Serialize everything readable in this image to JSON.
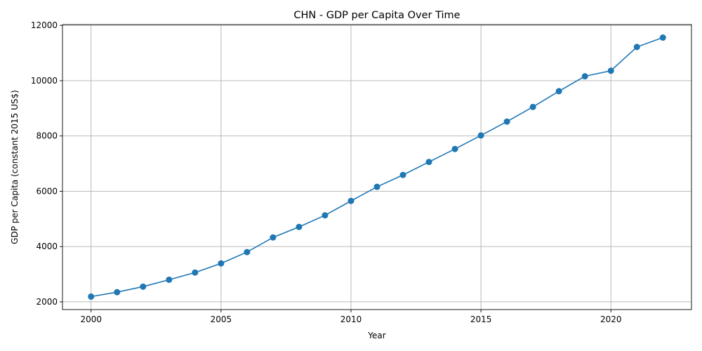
{
  "chart_data": {
    "type": "line",
    "title": "CHN - GDP per Capita Over Time",
    "xlabel": "Year",
    "ylabel": "GDP per Capita (constant 2015 US$)",
    "x": [
      2000,
      2001,
      2002,
      2003,
      2004,
      2005,
      2006,
      2007,
      2008,
      2009,
      2010,
      2011,
      2012,
      2013,
      2014,
      2015,
      2016,
      2017,
      2018,
      2019,
      2020,
      2021,
      2022
    ],
    "series": [
      {
        "values": [
          2190,
          2350,
          2550,
          2800,
          3060,
          3390,
          3800,
          4330,
          4710,
          5130,
          5650,
          6160,
          6590,
          7060,
          7530,
          8020,
          8520,
          9050,
          9620,
          10160,
          10360,
          11220,
          11560
        ],
        "color": "#1f77b4",
        "marker": "circle"
      }
    ],
    "xlim": [
      1998.9,
      2023.1
    ],
    "ylim": [
      1720,
      12030
    ],
    "xticks": [
      2000,
      2005,
      2010,
      2015,
      2020
    ],
    "yticks": [
      2000,
      4000,
      6000,
      8000,
      10000,
      12000
    ],
    "grid": true,
    "legend": "none"
  }
}
